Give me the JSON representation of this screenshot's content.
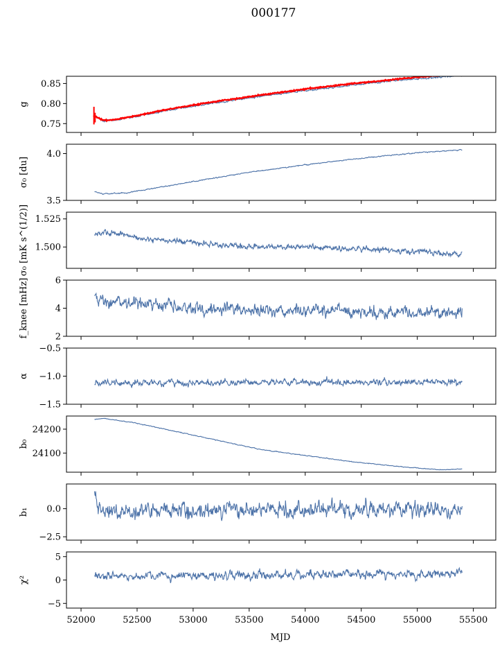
{
  "figure": {
    "title": "000177",
    "xlabel": "MJD",
    "x_ticks": [
      52000,
      52500,
      53000,
      53500,
      54000,
      54500,
      55000,
      55500
    ],
    "x_tick_labels": [
      "52000",
      "52500",
      "53000",
      "53500",
      "54000",
      "54500",
      "55000",
      "55500"
    ],
    "xlim": [
      51870,
      55700
    ]
  },
  "colors": {
    "series": "#4c72a8",
    "fit": "#ff0000",
    "frame": "#000000"
  },
  "chart_data": [
    {
      "type": "line",
      "panel": "g",
      "ylabel": "g",
      "ylim": [
        0.728,
        0.868
      ],
      "yticks": [
        0.75,
        0.8,
        0.85
      ],
      "ytick_labels": [
        "0.75",
        "0.80",
        "0.85"
      ],
      "x_range": [
        52120,
        55400
      ],
      "noise": 0.0015,
      "trend": [
        [
          52120,
          0.77
        ],
        [
          52200,
          0.757
        ],
        [
          52300,
          0.758
        ],
        [
          52500,
          0.768
        ],
        [
          52800,
          0.784
        ],
        [
          53200,
          0.802
        ],
        [
          53600,
          0.818
        ],
        [
          54000,
          0.832
        ],
        [
          54400,
          0.845
        ],
        [
          54800,
          0.857
        ],
        [
          55200,
          0.866
        ],
        [
          55400,
          0.87
        ]
      ],
      "fit_series": {
        "name": "fit",
        "color": "#ff0000",
        "trend": [
          [
            52110,
            0.77
          ],
          [
            52200,
            0.758
          ],
          [
            52300,
            0.76
          ],
          [
            52500,
            0.77
          ],
          [
            52800,
            0.787
          ],
          [
            53200,
            0.805
          ],
          [
            53600,
            0.821
          ],
          [
            54000,
            0.836
          ],
          [
            54400,
            0.849
          ],
          [
            54800,
            0.86
          ],
          [
            55000,
            0.866
          ],
          [
            55200,
            0.87
          ]
        ],
        "errorbars": [
          [
            52115,
            0.77,
            0.022
          ],
          [
            52125,
            0.765,
            0.012
          ]
        ]
      }
    },
    {
      "type": "line",
      "panel": "sigma0",
      "ylabel": "σ₀ [du]",
      "ylim": [
        3.5,
        4.1
      ],
      "yticks": [
        3.5,
        4.0
      ],
      "ytick_labels": [
        "3.5",
        "4.0"
      ],
      "x_range": [
        52120,
        55400
      ],
      "noise": 0.004,
      "trend": [
        [
          52120,
          3.59
        ],
        [
          52200,
          3.57
        ],
        [
          52400,
          3.58
        ],
        [
          52600,
          3.62
        ],
        [
          53000,
          3.7
        ],
        [
          53500,
          3.8
        ],
        [
          54000,
          3.88
        ],
        [
          54500,
          3.95
        ],
        [
          55000,
          4.01
        ],
        [
          55400,
          4.04
        ]
      ]
    },
    {
      "type": "line",
      "panel": "sigma0_flux",
      "ylabel": "σ₀ [mK s^(1/2)]",
      "ylim": [
        1.481,
        1.531
      ],
      "yticks": [
        1.5,
        1.525
      ],
      "ytick_labels": [
        "1.500",
        "1.525"
      ],
      "x_range": [
        52120,
        55400
      ],
      "noise": 0.002,
      "trend": [
        [
          52120,
          1.511
        ],
        [
          52300,
          1.513
        ],
        [
          52500,
          1.508
        ],
        [
          53000,
          1.504
        ],
        [
          53500,
          1.5
        ],
        [
          54000,
          1.5
        ],
        [
          54500,
          1.498
        ],
        [
          55000,
          1.496
        ],
        [
          55400,
          1.493
        ]
      ]
    },
    {
      "type": "line",
      "panel": "fknee",
      "ylabel": "f_knee [mHz]",
      "ylim": [
        2,
        6
      ],
      "yticks": [
        2,
        4,
        6
      ],
      "ytick_labels": [
        "2",
        "4",
        "6"
      ],
      "x_range": [
        52120,
        55400
      ],
      "noise": 0.35,
      "trend": [
        [
          52120,
          4.6
        ],
        [
          52500,
          4.3
        ],
        [
          53000,
          4.0
        ],
        [
          53500,
          3.9
        ],
        [
          54000,
          3.8
        ],
        [
          54500,
          3.8
        ],
        [
          55000,
          3.7
        ],
        [
          55400,
          3.7
        ]
      ]
    },
    {
      "type": "line",
      "panel": "alpha",
      "ylabel": "α",
      "ylim": [
        -1.5,
        -0.5
      ],
      "yticks": [
        -1.5,
        -1.0,
        -0.5
      ],
      "ytick_labels": [
        "−1.5",
        "−1.0",
        "−0.5"
      ],
      "x_range": [
        52120,
        55400
      ],
      "noise": 0.045,
      "trend": [
        [
          52120,
          -1.12
        ],
        [
          53000,
          -1.11
        ],
        [
          54000,
          -1.11
        ],
        [
          55000,
          -1.11
        ],
        [
          55400,
          -1.11
        ]
      ]
    },
    {
      "type": "line",
      "panel": "b0",
      "ylabel": "b₀",
      "ylim": [
        24020,
        24255
      ],
      "yticks": [
        24100,
        24200
      ],
      "ytick_labels": [
        "24100",
        "24200"
      ],
      "x_range": [
        52120,
        55400
      ],
      "noise": 1.2,
      "trend": [
        [
          52120,
          24240
        ],
        [
          52200,
          24245
        ],
        [
          52500,
          24225
        ],
        [
          52800,
          24195
        ],
        [
          53200,
          24155
        ],
        [
          53600,
          24115
        ],
        [
          54000,
          24090
        ],
        [
          54400,
          24065
        ],
        [
          54800,
          24045
        ],
        [
          55200,
          24030
        ],
        [
          55400,
          24033
        ]
      ]
    },
    {
      "type": "line",
      "panel": "b1",
      "ylabel": "b₁",
      "ylim": [
        -2.8,
        2.2
      ],
      "yticks": [
        -2.5,
        0.0
      ],
      "ytick_labels": [
        "−2.5",
        "0.0"
      ],
      "x_range": [
        52120,
        55400
      ],
      "noise": 0.55,
      "trend": [
        [
          52120,
          1.5
        ],
        [
          52150,
          0.0
        ],
        [
          52250,
          -0.2
        ],
        [
          53000,
          -0.2
        ],
        [
          54000,
          -0.1
        ],
        [
          55400,
          -0.1
        ]
      ]
    },
    {
      "type": "line",
      "panel": "chi2",
      "ylabel": "χ²",
      "ylim": [
        -6,
        6
      ],
      "yticks": [
        -5,
        0,
        5
      ],
      "ytick_labels": [
        "−5",
        "0",
        "5"
      ],
      "x_range": [
        52120,
        55400
      ],
      "noise": 0.7,
      "trend": [
        [
          52120,
          0.9
        ],
        [
          53000,
          0.9
        ],
        [
          54000,
          1.0
        ],
        [
          55000,
          1.2
        ],
        [
          55400,
          1.5
        ]
      ]
    }
  ]
}
